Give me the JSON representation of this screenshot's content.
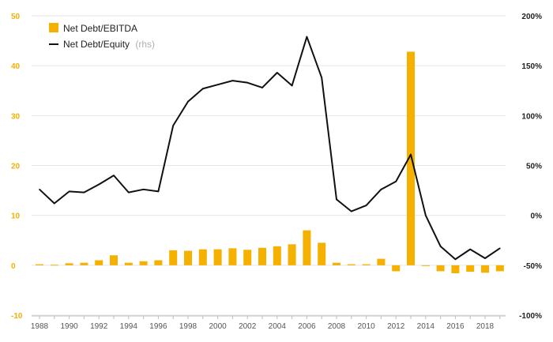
{
  "chart_data": {
    "type": "bar+line",
    "x": [
      1988,
      1989,
      1990,
      1991,
      1992,
      1993,
      1994,
      1995,
      1996,
      1997,
      1998,
      1999,
      2000,
      2001,
      2002,
      2003,
      2004,
      2005,
      2006,
      2007,
      2008,
      2009,
      2010,
      2011,
      2012,
      2013,
      2014,
      2015,
      2016,
      2017,
      2018,
      2019
    ],
    "x_tick_labels": [
      "1988",
      "1990",
      "1992",
      "1994",
      "1996",
      "1998",
      "2000",
      "2002",
      "2004",
      "2006",
      "2008",
      "2010",
      "2012",
      "2014",
      "2016",
      "2018"
    ],
    "y_left_ticks": [
      "50",
      "40",
      "30",
      "20",
      "10",
      "0",
      "-10"
    ],
    "y_left_range": [
      -10,
      50
    ],
    "y_right_ticks": [
      "200%",
      "150%",
      "100%",
      "50%",
      "0%",
      "-50%",
      "-100%"
    ],
    "y_right_range": [
      -100,
      200
    ],
    "grid": true,
    "legend_position": "top-left",
    "series": [
      {
        "name": "Net Debt/EBITDA",
        "kind": "bar",
        "axis": "left",
        "color": "#f5b000",
        "values": [
          0.2,
          0.1,
          0.4,
          0.5,
          1.0,
          2.0,
          0.5,
          0.8,
          1.0,
          3.0,
          2.9,
          3.2,
          3.2,
          3.4,
          3.1,
          3.5,
          3.8,
          4.2,
          7.0,
          4.5,
          0.5,
          0.2,
          0.2,
          1.3,
          -1.2,
          42.8,
          0.0,
          -1.2,
          -1.6,
          -1.3,
          -1.5,
          -1.2
        ]
      },
      {
        "name": "Net Debt/Equity",
        "name_suffix": "(rhs)",
        "kind": "line",
        "axis": "right",
        "color": "#111111",
        "values": [
          26,
          12,
          24,
          23,
          31,
          40,
          23,
          26,
          24,
          90,
          114,
          127,
          131,
          135,
          133,
          128,
          143,
          130,
          179,
          138,
          16,
          4,
          10,
          26,
          34,
          61,
          0,
          -31,
          -44,
          -34,
          -43,
          -33
        ]
      }
    ]
  }
}
